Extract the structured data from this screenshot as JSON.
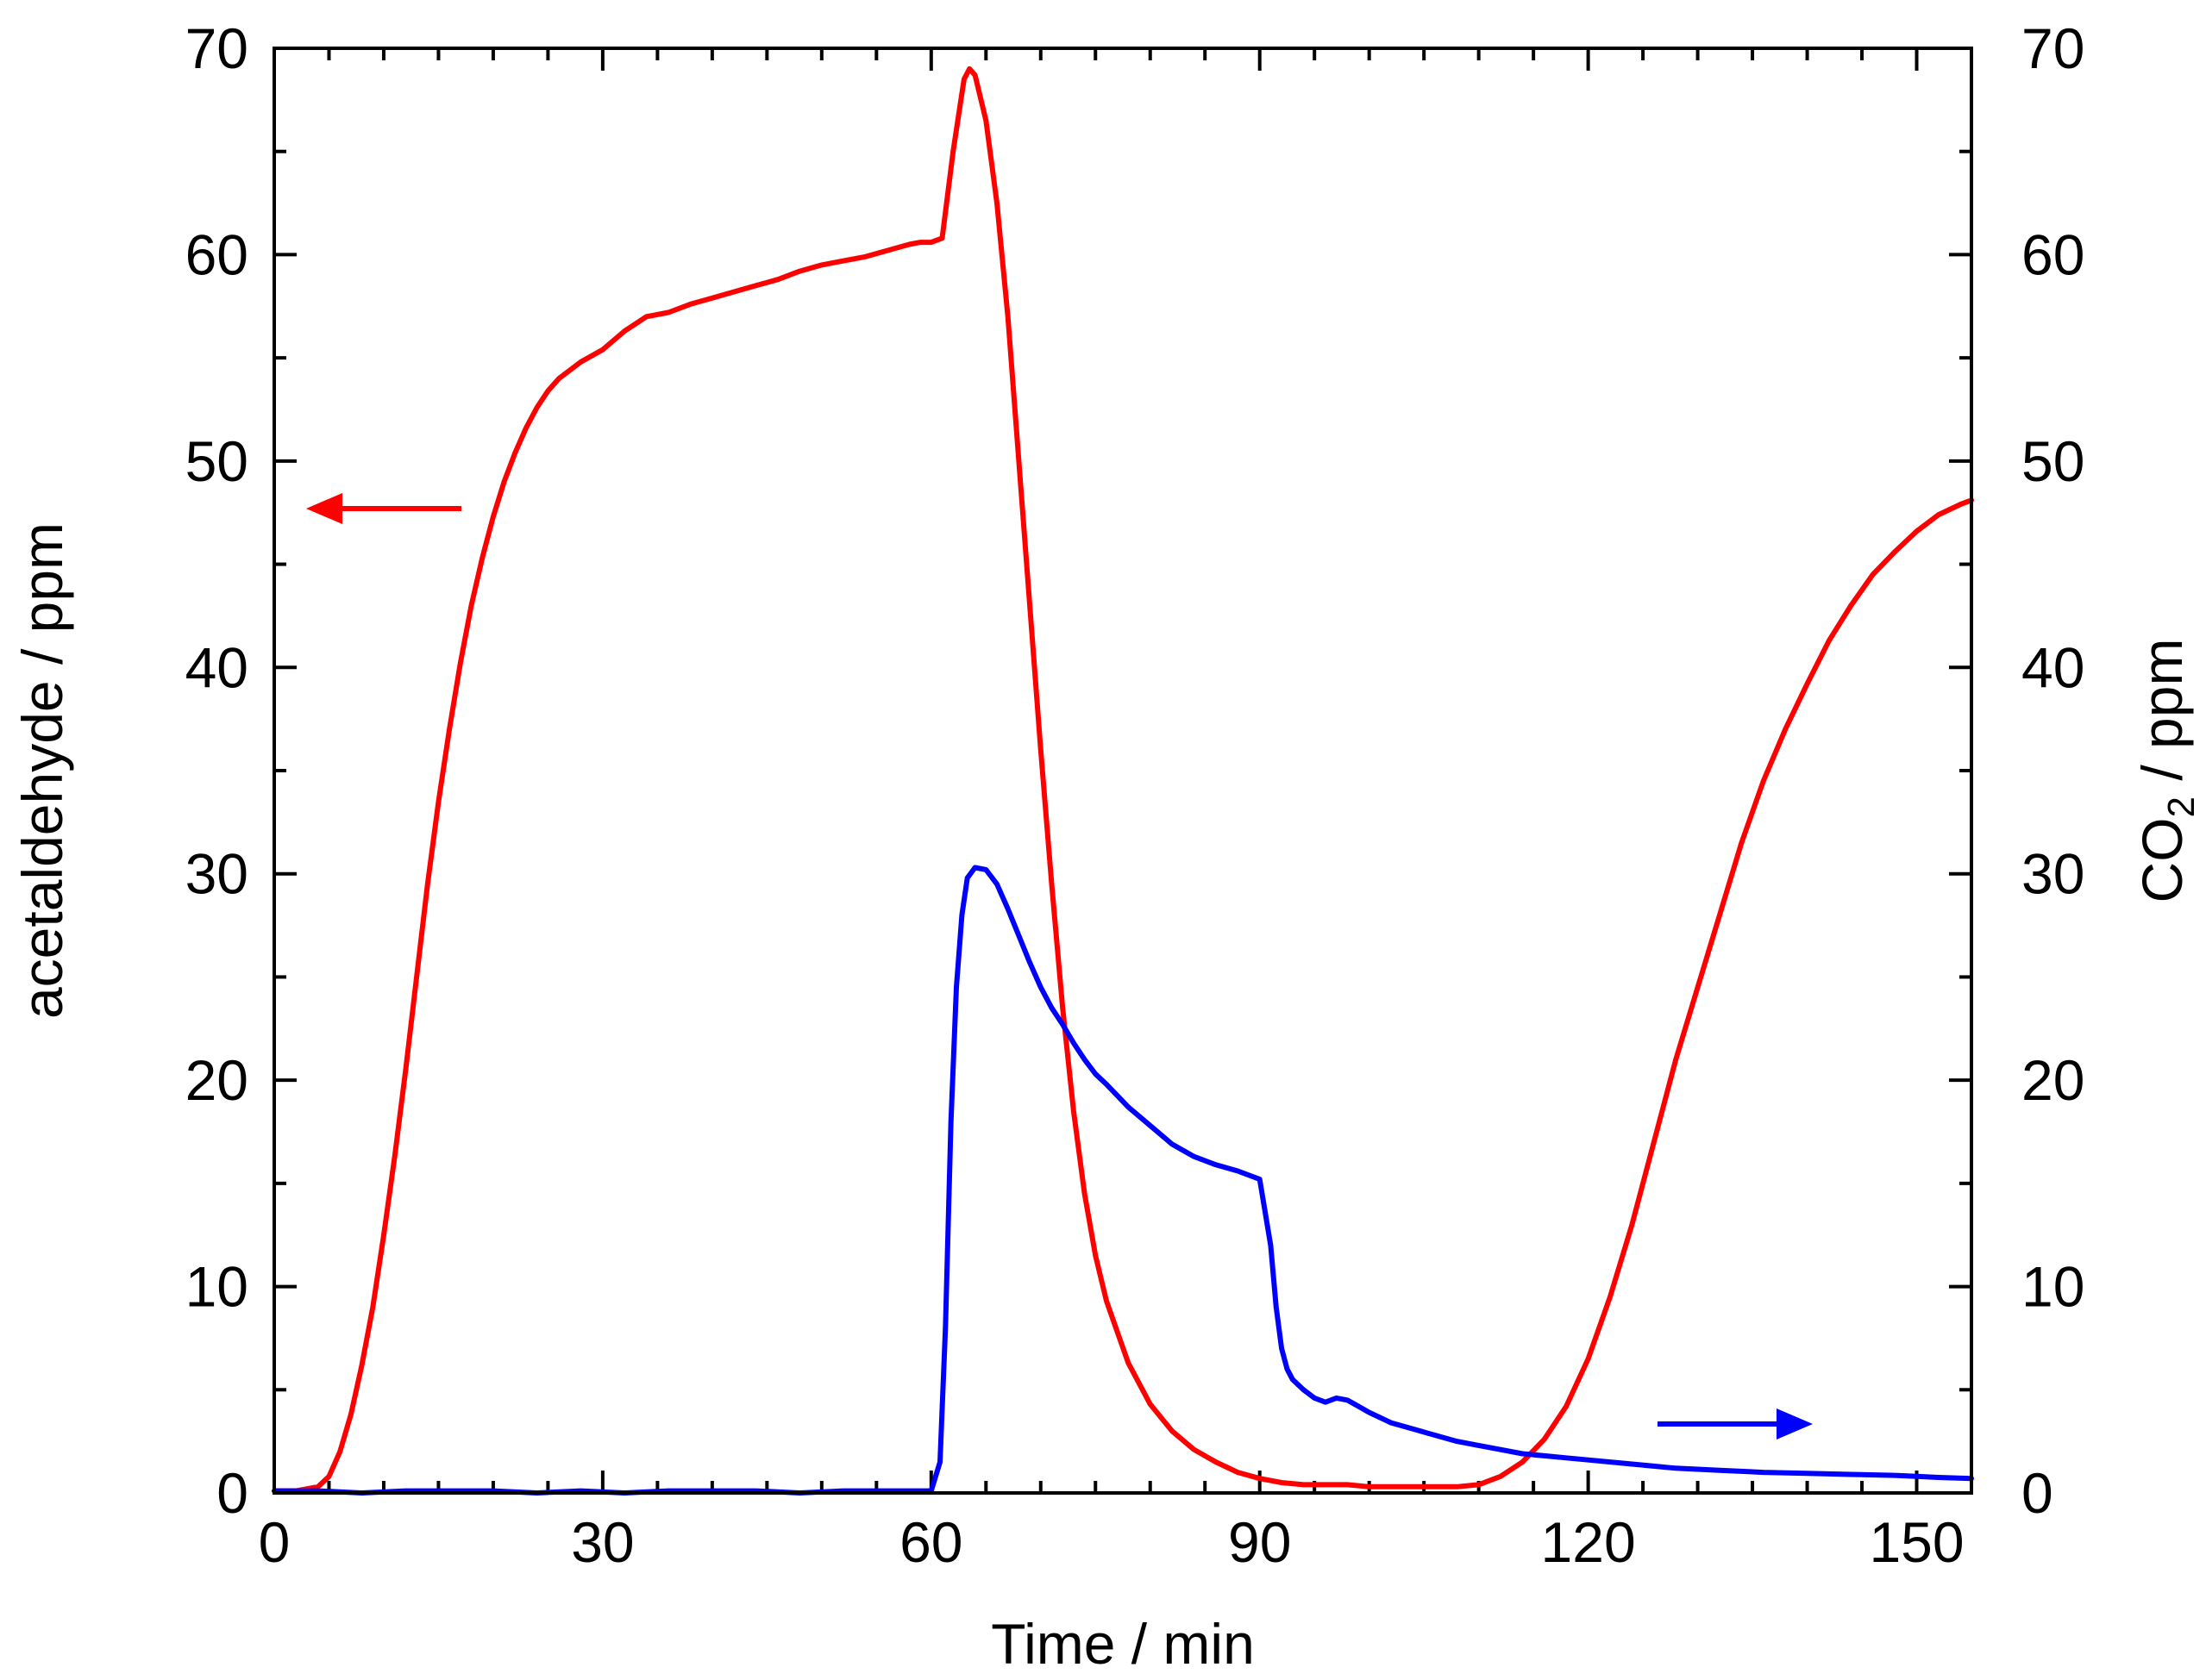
{
  "chart_data": {
    "type": "line",
    "title": "",
    "xlabel": "Time / min",
    "ylabel_left": "acetaldehyde / ppm",
    "ylabel_right": {
      "prefix": "CO",
      "subscript": "2",
      "suffix": " / ppm"
    },
    "xlim": [
      0,
      155
    ],
    "ylim": [
      0,
      70
    ],
    "x_ticks": [
      0,
      30,
      60,
      90,
      120,
      150
    ],
    "y_ticks": [
      0,
      10,
      20,
      30,
      40,
      50,
      60,
      70
    ],
    "grid": false,
    "series": [
      {
        "name": "acetaldehyde",
        "axis": "left",
        "color": "#ff0000",
        "x": [
          0,
          2,
          4,
          5,
          6,
          7,
          8,
          9,
          10,
          11,
          12,
          13,
          14,
          15,
          16,
          17,
          18,
          19,
          20,
          21,
          22,
          23,
          24,
          25,
          26,
          28,
          30,
          32,
          34,
          36,
          38,
          40,
          42,
          44,
          46,
          48,
          50,
          52,
          54,
          56,
          58,
          59,
          60,
          61,
          62,
          63,
          63.5,
          64,
          65,
          66,
          67,
          68,
          69,
          70,
          71,
          72,
          73,
          74,
          75,
          76,
          78,
          80,
          82,
          84,
          86,
          88,
          90,
          92,
          94,
          96,
          98,
          100,
          102,
          104,
          106,
          108,
          110,
          112,
          114,
          116,
          118,
          120,
          122,
          124,
          126,
          128,
          130,
          132,
          134,
          136,
          138,
          140,
          142,
          144,
          146,
          148,
          150,
          152,
          154,
          155
        ],
        "y": [
          0.1,
          0.1,
          0.3,
          0.8,
          2.0,
          3.8,
          6.2,
          9.0,
          12.5,
          16.3,
          20.5,
          25.0,
          29.5,
          33.5,
          37.0,
          40.2,
          43.0,
          45.3,
          47.3,
          49.0,
          50.4,
          51.6,
          52.6,
          53.4,
          54.0,
          54.8,
          55.4,
          56.3,
          57.0,
          57.2,
          57.6,
          57.9,
          58.2,
          58.5,
          58.8,
          59.2,
          59.5,
          59.7,
          59.9,
          60.2,
          60.5,
          60.6,
          60.6,
          60.8,
          65.0,
          68.5,
          69.0,
          68.7,
          66.5,
          62.5,
          57.0,
          50.0,
          43.0,
          36.0,
          29.5,
          23.5,
          18.5,
          14.5,
          11.5,
          9.3,
          6.3,
          4.3,
          3.0,
          2.1,
          1.5,
          1.0,
          0.7,
          0.5,
          0.4,
          0.4,
          0.4,
          0.3,
          0.3,
          0.3,
          0.3,
          0.3,
          0.4,
          0.8,
          1.5,
          2.6,
          4.2,
          6.5,
          9.5,
          13.0,
          17.0,
          21.0,
          24.5,
          28.0,
          31.5,
          34.5,
          37.0,
          39.2,
          41.3,
          43.0,
          44.5,
          45.6,
          46.6,
          47.4,
          47.9,
          48.1
        ]
      },
      {
        "name": "CO2",
        "axis": "right",
        "color": "#0000ff",
        "x": [
          0,
          4,
          8,
          12,
          16,
          20,
          24,
          28,
          32,
          36,
          40,
          44,
          48,
          52,
          56,
          59,
          60,
          60.8,
          61.3,
          61.8,
          62.3,
          62.8,
          63.3,
          64,
          65,
          66,
          67,
          68,
          69,
          70,
          71,
          72,
          73,
          74,
          75,
          76,
          78,
          80,
          82,
          84,
          86,
          88,
          90,
          91,
          91.5,
          92,
          92.5,
          93,
          94,
          95,
          96,
          97,
          98,
          99,
          100,
          102,
          104,
          106,
          108,
          110,
          112,
          114,
          116,
          118,
          120,
          124,
          128,
          132,
          136,
          140,
          144,
          148,
          150,
          152,
          155
        ],
        "y": [
          0.1,
          0.1,
          0.0,
          0.1,
          0.1,
          0.1,
          0.0,
          0.1,
          0.0,
          0.1,
          0.1,
          0.1,
          0.0,
          0.1,
          0.1,
          0.1,
          0.1,
          1.5,
          8.0,
          18.0,
          24.5,
          28.0,
          29.8,
          30.3,
          30.2,
          29.5,
          28.3,
          27.0,
          25.7,
          24.5,
          23.5,
          22.7,
          21.8,
          21.0,
          20.3,
          19.8,
          18.7,
          17.8,
          16.9,
          16.3,
          15.9,
          15.6,
          15.2,
          12.0,
          9.0,
          7.0,
          6.0,
          5.5,
          5.0,
          4.6,
          4.4,
          4.6,
          4.5,
          4.2,
          3.9,
          3.4,
          3.1,
          2.8,
          2.5,
          2.3,
          2.1,
          1.9,
          1.8,
          1.7,
          1.6,
          1.4,
          1.2,
          1.1,
          1.0,
          0.95,
          0.9,
          0.85,
          0.8,
          0.75,
          0.7
        ]
      }
    ],
    "annotations": [
      {
        "text": "arrow pointing left: red curve uses left axis",
        "color": "#ff0000",
        "direction": "left"
      },
      {
        "text": "arrow pointing right: blue curve uses right axis",
        "color": "#0000ff",
        "direction": "right"
      }
    ]
  }
}
